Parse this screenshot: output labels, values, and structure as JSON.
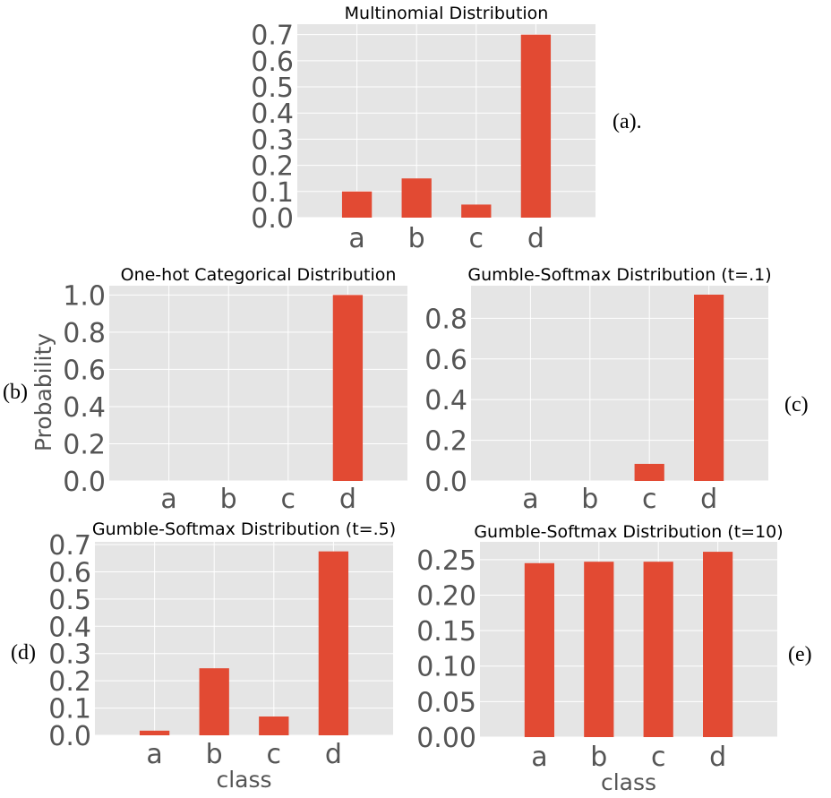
{
  "colors": {
    "bar": "#E24A33",
    "panel_bg": "#E5E5E5",
    "grid": "#FFFFFF",
    "tick_text": "#555555"
  },
  "chart_data": [
    {
      "id": "a",
      "type": "bar",
      "title": "Multinomial Distribution",
      "categories": [
        "a",
        "b",
        "c",
        "d"
      ],
      "values": [
        0.1,
        0.15,
        0.05,
        0.7
      ],
      "ylim": [
        0,
        0.74
      ],
      "yticks": [
        "0.0",
        "0.1",
        "0.2",
        "0.3",
        "0.4",
        "0.5",
        "0.6",
        "0.7"
      ],
      "xlabel": "",
      "ylabel": "",
      "panel_label": "(a)."
    },
    {
      "id": "b",
      "type": "bar",
      "title": "One-hot Categorical Distribution",
      "categories": [
        "a",
        "b",
        "c",
        "d"
      ],
      "values": [
        0,
        0,
        0,
        1.0
      ],
      "ylim": [
        0,
        1.05
      ],
      "yticks": [
        "0.0",
        "0.2",
        "0.4",
        "0.6",
        "0.8",
        "1.0"
      ],
      "xlabel": "",
      "ylabel": "Probability",
      "panel_label": "(b)"
    },
    {
      "id": "c",
      "type": "bar",
      "title": "Gumble-Softmax Distribution (t=.1)",
      "categories": [
        "a",
        "b",
        "c",
        "d"
      ],
      "values": [
        0.0,
        0.0,
        0.084,
        0.916
      ],
      "ylim": [
        0,
        0.96
      ],
      "yticks": [
        "0.0",
        "0.2",
        "0.4",
        "0.6",
        "0.8"
      ],
      "xlabel": "",
      "ylabel": "",
      "panel_label": "(c)"
    },
    {
      "id": "d",
      "type": "bar",
      "title": "Gumble-Softmax Distribution (t=.5)",
      "categories": [
        "a",
        "b",
        "c",
        "d"
      ],
      "values": [
        0.017,
        0.246,
        0.069,
        0.675
      ],
      "ylim": [
        0,
        0.71
      ],
      "yticks": [
        "0.0",
        "0.1",
        "0.2",
        "0.3",
        "0.4",
        "0.5",
        "0.6",
        "0.7"
      ],
      "xlabel": "class",
      "ylabel": "",
      "panel_label": "(d)"
    },
    {
      "id": "e",
      "type": "bar",
      "title": "Gumble-Softmax Distribution (t=10)",
      "categories": [
        "a",
        "b",
        "c",
        "d"
      ],
      "values": [
        0.245,
        0.247,
        0.247,
        0.261
      ],
      "ylim": [
        0,
        0.275
      ],
      "yticks": [
        "0.00",
        "0.05",
        "0.10",
        "0.15",
        "0.20",
        "0.25"
      ],
      "xlabel": "class",
      "ylabel": "",
      "panel_label": "(e)"
    }
  ]
}
